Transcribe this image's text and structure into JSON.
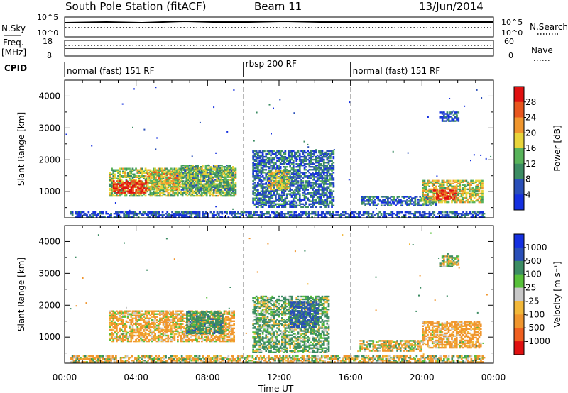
{
  "header": {
    "station": "South Pole Station (fitACF)",
    "beam": "Beam 11",
    "date": "13/Jun/2014"
  },
  "status_panel": {
    "left_labels": {
      "nsky": "N.Sky",
      "freq": "Freq.",
      "freq_unit": "[MHz]",
      "cpid": "CPID"
    },
    "right_labels": {
      "nsearch": "N.Search",
      "nave": "Nave"
    },
    "noise_ticks": [
      "10^5",
      "10^0"
    ],
    "noise_right_ticks": [
      "10^5",
      "10^0"
    ],
    "freq_ticks": [
      "18",
      "8"
    ],
    "nave_ticks": [
      "60",
      "0"
    ],
    "cpid_segments": [
      {
        "label": "normal (fast) 151 RF",
        "start": 0,
        "end": 10
      },
      {
        "label": "rbsp 200 RF",
        "start": 10,
        "end": 16
      },
      {
        "label": "normal (fast) 151 RF",
        "start": 16,
        "end": 24
      }
    ]
  },
  "colors": {
    "power": [
      "#1530e0",
      "#2a4fb8",
      "#3c8c63",
      "#58b35a",
      "#e8d43a",
      "#f0962e",
      "#e8561e",
      "#e01010"
    ],
    "velocity": [
      "#e01010",
      "#f06020",
      "#f0962e",
      "#f2b83a",
      "#c8c8c8",
      "#58c03a",
      "#3c8c63",
      "#2a4fb8",
      "#1530e0"
    ]
  },
  "chart_data": [
    {
      "type": "heatmap",
      "panel": "power",
      "ylabel": "Slant Range [km]",
      "xlabel": "Time UT",
      "x_ticks": [
        "00:00",
        "04:00",
        "08:00",
        "12:00",
        "16:00",
        "20:00",
        "00:00"
      ],
      "y_ticks": [
        "1000",
        "2000",
        "3000",
        "4000"
      ],
      "xlim": [
        0,
        24
      ],
      "ylim": [
        180,
        4500
      ],
      "colorbar_label": "Power [dB]",
      "colorbar_ticks": [
        "4",
        "8",
        "12",
        "16",
        "20",
        "24",
        "28"
      ],
      "colorbar_range": [
        0,
        30
      ],
      "regions": [
        {
          "t0": 2.5,
          "t1": 9.6,
          "r0": 850,
          "r1": 1750,
          "v": 14
        },
        {
          "t0": 2.7,
          "t1": 4.6,
          "r0": 950,
          "r1": 1350,
          "v": 27
        },
        {
          "t0": 4.6,
          "t1": 6.4,
          "r0": 1050,
          "r1": 1650,
          "v": 18
        },
        {
          "t0": 6.5,
          "t1": 9.4,
          "r0": 950,
          "r1": 1850,
          "v": 12
        },
        {
          "t0": 10.5,
          "t1": 15.0,
          "r0": 500,
          "r1": 2300,
          "v": 7
        },
        {
          "t0": 11.4,
          "t1": 12.5,
          "r0": 1050,
          "r1": 1650,
          "v": 16
        },
        {
          "t0": 16.6,
          "t1": 20.8,
          "r0": 550,
          "r1": 850,
          "v": 6
        },
        {
          "t0": 20.0,
          "t1": 23.4,
          "r0": 650,
          "r1": 1350,
          "v": 16
        },
        {
          "t0": 20.6,
          "t1": 21.9,
          "r0": 750,
          "r1": 1050,
          "v": 26
        },
        {
          "t0": 21.0,
          "t1": 22.0,
          "r0": 3200,
          "r1": 3500,
          "v": 6
        },
        {
          "t0": 0.3,
          "t1": 23.5,
          "r0": 200,
          "r1": 350,
          "v": 5
        }
      ]
    },
    {
      "type": "heatmap",
      "panel": "velocity",
      "ylabel": "Slant Range [km]",
      "xlabel": "Time UT",
      "x_ticks": [
        "00:00",
        "04:00",
        "08:00",
        "12:00",
        "16:00",
        "20:00",
        "00:00"
      ],
      "y_ticks": [
        "1000",
        "2000",
        "3000",
        "4000"
      ],
      "xlim": [
        0,
        24
      ],
      "ylim": [
        180,
        4500
      ],
      "colorbar_label": "Velocity [m s⁻¹]",
      "colorbar_ticks": [
        "1000",
        "500",
        "100",
        "25",
        "-25",
        "-100",
        "-500",
        "-1000"
      ],
      "regions": [
        {
          "t0": 2.5,
          "t1": 9.5,
          "r0": 850,
          "r1": 1800,
          "v": -150
        },
        {
          "t0": 6.8,
          "t1": 8.8,
          "r0": 1100,
          "r1": 1800,
          "v": 300
        },
        {
          "t0": 10.5,
          "t1": 14.8,
          "r0": 500,
          "r1": 2300,
          "v": 150
        },
        {
          "t0": 12.6,
          "t1": 14.2,
          "r0": 1300,
          "r1": 2100,
          "v": 600
        },
        {
          "t0": 16.5,
          "t1": 20.0,
          "r0": 550,
          "r1": 900,
          "v": -80
        },
        {
          "t0": 20.0,
          "t1": 23.3,
          "r0": 650,
          "r1": 1500,
          "v": -200
        },
        {
          "t0": 21.0,
          "t1": 22.0,
          "r0": 3200,
          "r1": 3550,
          "v": 10
        },
        {
          "t0": 0.3,
          "t1": 23.5,
          "r0": 200,
          "r1": 400,
          "v": -60
        }
      ]
    }
  ]
}
